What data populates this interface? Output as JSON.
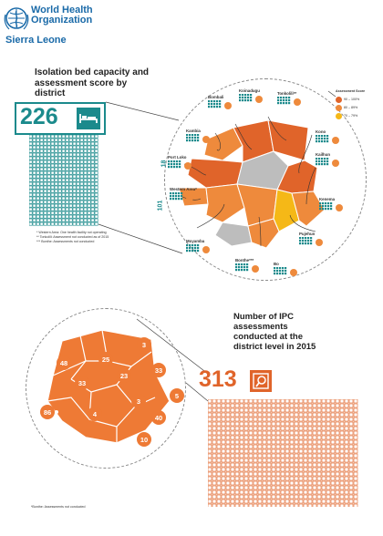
{
  "header": {
    "org_line1": "World Health",
    "org_line2": "Organization",
    "country": "Sierra Leone",
    "logo_icon": "who-emblem-icon"
  },
  "colors": {
    "teal": "#1b8a8c",
    "orange_dark": "#e0642a",
    "orange_mid": "#ee8a3c",
    "yellow": "#f5b817",
    "map_grey": "#bdbdbd",
    "who_blue": "#1a6aa8"
  },
  "isolation": {
    "title": "Isolation bed capacity and assessment score by district",
    "total_beds": "226",
    "bed_icon": "bed-icon",
    "axis_labels": [
      "18",
      "101"
    ],
    "notes": [
      "* Western Area: One health facility not operating",
      "** Tonkolili: Assessment not conducted as of 2015",
      "*** Bonthe: Assessments not conducted"
    ],
    "legend": {
      "title": "Assessment Score",
      "items": [
        {
          "label": "90 – 100%",
          "color": "#e0642a"
        },
        {
          "label": "80 – 89%",
          "color": "#ee8a3c"
        },
        {
          "label": "70 – 79%",
          "color": "#f5b817"
        }
      ]
    },
    "districts": [
      {
        "name": "Bombali"
      },
      {
        "name": "Koinadugu"
      },
      {
        "name": "Tonkolili**"
      },
      {
        "name": "Kambia"
      },
      {
        "name": "Kono"
      },
      {
        "name": "Port Loko"
      },
      {
        "name": "Kailhun"
      },
      {
        "name": "Western Area*"
      },
      {
        "name": "Kenema"
      },
      {
        "name": "Moyamba"
      },
      {
        "name": "Pujehun"
      },
      {
        "name": "Bonthe***"
      },
      {
        "name": "Bo"
      }
    ]
  },
  "ipc": {
    "title": "Number of IPC assessments conducted at the district level in 2015",
    "total": "313",
    "ipc_icon": "magnifier-icon",
    "map_counts": [
      "48",
      "25",
      "3",
      "33",
      "23",
      "33",
      "86",
      "3",
      "5",
      "4",
      "40",
      "10"
    ],
    "note": "*Bonthe: Assessments not conducted"
  }
}
